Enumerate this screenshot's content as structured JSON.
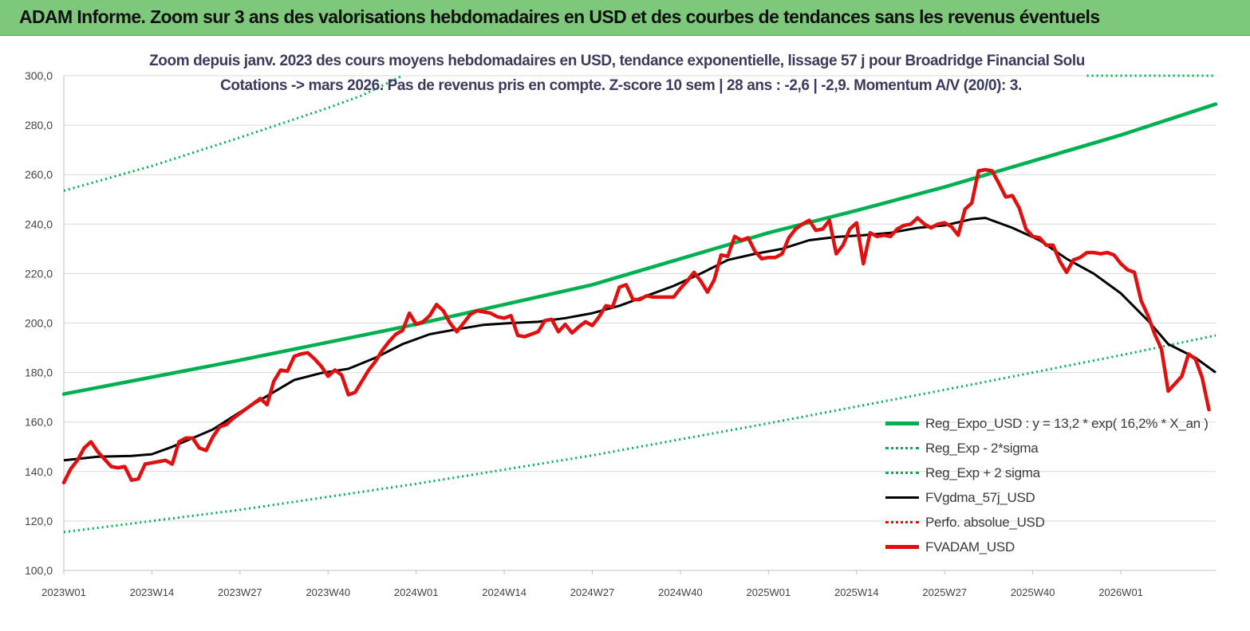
{
  "banner": {
    "title": "ADAM Informe. Zoom sur 3 ans des valorisations hebdomadaires en USD et des courbes de tendances sans les revenus éventuels",
    "color": "#7dc87a"
  },
  "chart_data": {
    "type": "line",
    "title": "Zoom depuis janv. 2023 des cours moyens hebdomadaires en USD, tendance exponentielle, lissage 57 j pour Broadridge Financial Solu",
    "subtitle": "Cotations -> mars 2026. Pas de revenus pris en compte. Z-score 10 sem | 28 ans : -2,6 | -2,9. Momentum A/V (20/0): 3.",
    "xlabel": "",
    "ylabel": "",
    "ylim": [
      100,
      300
    ],
    "y_ticks": [
      "100,0",
      "120,0",
      "140,0",
      "160,0",
      "180,0",
      "200,0",
      "220,0",
      "240,0",
      "260,0",
      "280,0",
      "300,0"
    ],
    "x_tick_labels": [
      "2023W01",
      "2023W14",
      "2023W27",
      "2023W40",
      "2024W01",
      "2024W14",
      "2024W27",
      "2024W40",
      "2025W01",
      "2025W14",
      "2025W27",
      "2025W40",
      "2026W01"
    ],
    "x_tick_index": [
      0,
      13,
      26,
      39,
      52,
      65,
      78,
      91,
      104,
      117,
      130,
      143,
      156
    ],
    "n_weeks": 170,
    "grid": "horizontal",
    "legend_position": "bottom-right",
    "series": [
      {
        "name": "Reg_Expo_USD : y = 13,2 * exp( 16,2% * X_an )",
        "color": "#00b050",
        "style": "solid-thick",
        "points": [
          [
            0,
            171.3
          ],
          [
            26,
            185.0
          ],
          [
            52,
            199.5
          ],
          [
            78,
            215.5
          ],
          [
            104,
            236.5
          ],
          [
            117,
            245.5
          ],
          [
            130,
            255.0
          ],
          [
            156,
            276.0
          ],
          [
            170,
            288.5
          ]
        ]
      },
      {
        "name": "Reg_Exp - 2*sigma",
        "color": "#00b050",
        "style": "dotted",
        "points": [
          [
            0,
            115.5
          ],
          [
            26,
            124.5
          ],
          [
            52,
            135.0
          ],
          [
            78,
            146.5
          ],
          [
            104,
            159.5
          ],
          [
            130,
            173.0
          ],
          [
            156,
            187.0
          ],
          [
            170,
            195.0
          ]
        ]
      },
      {
        "name": "Reg_Exp + 2 sigma",
        "color": "#00b050",
        "style": "dotted",
        "points": [
          [
            0,
            253.5
          ],
          [
            13,
            263.5
          ],
          [
            26,
            275.0
          ],
          [
            39,
            287.0
          ],
          [
            44,
            292.0
          ],
          [
            50,
            300.0
          ]
        ],
        "extra_segment": [
          [
            151,
            300.0
          ],
          [
            170,
            300.0
          ]
        ]
      },
      {
        "name": "FVgdma_57j_USD",
        "color": "#000000",
        "style": "solid",
        "points": [
          [
            0,
            144.5
          ],
          [
            5,
            146.0
          ],
          [
            10,
            146.3
          ],
          [
            13,
            147.0
          ],
          [
            16,
            150.0
          ],
          [
            19,
            153.5
          ],
          [
            22,
            157.0
          ],
          [
            26,
            164.0
          ],
          [
            30,
            170.5
          ],
          [
            34,
            177.0
          ],
          [
            38,
            179.8
          ],
          [
            42,
            181.5
          ],
          [
            46,
            186.0
          ],
          [
            50,
            191.5
          ],
          [
            54,
            195.5
          ],
          [
            58,
            197.5
          ],
          [
            62,
            199.3
          ],
          [
            66,
            200.0
          ],
          [
            70,
            200.5
          ],
          [
            74,
            202.0
          ],
          [
            78,
            204.0
          ],
          [
            82,
            207.0
          ],
          [
            86,
            211.0
          ],
          [
            90,
            215.0
          ],
          [
            94,
            220.0
          ],
          [
            98,
            225.5
          ],
          [
            102,
            228.0
          ],
          [
            106,
            230.0
          ],
          [
            110,
            233.5
          ],
          [
            114,
            234.8
          ],
          [
            118,
            235.5
          ],
          [
            122,
            236.5
          ],
          [
            126,
            238.5
          ],
          [
            130,
            239.5
          ],
          [
            134,
            242.0
          ],
          [
            136,
            242.5
          ],
          [
            140,
            238.5
          ],
          [
            144,
            233.5
          ],
          [
            148,
            226.0
          ],
          [
            152,
            220.0
          ],
          [
            156,
            212.0
          ],
          [
            160,
            201.0
          ],
          [
            163,
            191.5
          ],
          [
            167,
            186.0
          ],
          [
            170,
            180.0
          ]
        ]
      },
      {
        "name": "Perfo. absolue_USD",
        "color": "#ff0000",
        "style": "dotted",
        "points": []
      },
      {
        "name": "FVADAM_USD",
        "color": "#e01010",
        "style": "solid-thick",
        "points": [
          [
            0,
            135.5
          ],
          [
            1,
            141.0
          ],
          [
            2,
            144.5
          ],
          [
            3,
            149.5
          ],
          [
            4,
            152.0
          ],
          [
            5,
            148.0
          ],
          [
            6,
            145.0
          ],
          [
            7,
            142.0
          ],
          [
            8,
            141.5
          ],
          [
            9,
            142.0
          ],
          [
            10,
            136.5
          ],
          [
            11,
            137.0
          ],
          [
            12,
            143.0
          ],
          [
            13,
            143.5
          ],
          [
            14,
            144.0
          ],
          [
            15,
            144.5
          ],
          [
            16,
            143.0
          ],
          [
            17,
            152.0
          ],
          [
            18,
            153.5
          ],
          [
            19,
            153.5
          ],
          [
            20,
            149.5
          ],
          [
            21,
            148.5
          ],
          [
            22,
            154.0
          ],
          [
            23,
            158.0
          ],
          [
            24,
            159.0
          ],
          [
            25,
            161.5
          ],
          [
            26,
            163.5
          ],
          [
            27,
            165.5
          ],
          [
            28,
            167.5
          ],
          [
            29,
            169.5
          ],
          [
            30,
            167.0
          ],
          [
            31,
            176.5
          ],
          [
            32,
            181.0
          ],
          [
            33,
            180.5
          ],
          [
            34,
            186.5
          ],
          [
            35,
            187.5
          ],
          [
            36,
            188.0
          ],
          [
            37,
            185.5
          ],
          [
            38,
            182.5
          ],
          [
            39,
            178.5
          ],
          [
            40,
            181.0
          ],
          [
            41,
            179.0
          ],
          [
            42,
            171.0
          ],
          [
            43,
            172.0
          ],
          [
            44,
            176.5
          ],
          [
            45,
            181.0
          ],
          [
            46,
            184.5
          ],
          [
            47,
            189.0
          ],
          [
            48,
            192.5
          ],
          [
            49,
            195.5
          ],
          [
            50,
            197.0
          ],
          [
            51,
            204.0
          ],
          [
            52,
            199.5
          ],
          [
            53,
            200.5
          ],
          [
            54,
            203.0
          ],
          [
            55,
            207.5
          ],
          [
            56,
            205.0
          ],
          [
            57,
            200.0
          ],
          [
            58,
            196.5
          ],
          [
            59,
            200.0
          ],
          [
            60,
            203.5
          ],
          [
            61,
            205.0
          ],
          [
            62,
            204.5
          ],
          [
            63,
            204.0
          ],
          [
            64,
            202.5
          ],
          [
            65,
            202.0
          ],
          [
            66,
            203.0
          ],
          [
            67,
            195.0
          ],
          [
            68,
            194.5
          ],
          [
            69,
            195.5
          ],
          [
            70,
            196.5
          ],
          [
            71,
            201.0
          ],
          [
            72,
            201.5
          ],
          [
            73,
            196.5
          ],
          [
            74,
            199.5
          ],
          [
            75,
            196.0
          ],
          [
            76,
            198.5
          ],
          [
            77,
            200.5
          ],
          [
            78,
            199.0
          ],
          [
            79,
            202.5
          ],
          [
            80,
            207.0
          ],
          [
            81,
            206.5
          ],
          [
            82,
            214.5
          ],
          [
            83,
            215.5
          ],
          [
            84,
            209.5
          ],
          [
            85,
            209.5
          ],
          [
            86,
            211.0
          ],
          [
            87,
            210.5
          ],
          [
            88,
            210.5
          ],
          [
            89,
            210.5
          ],
          [
            90,
            210.5
          ],
          [
            91,
            214.0
          ],
          [
            92,
            217.0
          ],
          [
            93,
            220.5
          ],
          [
            94,
            217.0
          ],
          [
            95,
            212.5
          ],
          [
            96,
            217.5
          ],
          [
            97,
            227.5
          ],
          [
            98,
            227.0
          ],
          [
            99,
            235.0
          ],
          [
            100,
            233.5
          ],
          [
            101,
            234.5
          ],
          [
            102,
            229.0
          ],
          [
            103,
            226.0
          ],
          [
            104,
            226.5
          ],
          [
            105,
            226.5
          ],
          [
            106,
            228.0
          ],
          [
            107,
            234.5
          ],
          [
            108,
            238.0
          ],
          [
            109,
            240.0
          ],
          [
            110,
            241.5
          ],
          [
            111,
            237.5
          ],
          [
            112,
            238.0
          ],
          [
            113,
            241.5
          ],
          [
            114,
            228.0
          ],
          [
            115,
            231.5
          ],
          [
            116,
            238.0
          ],
          [
            117,
            240.5
          ],
          [
            118,
            224.0
          ],
          [
            119,
            236.5
          ],
          [
            120,
            235.0
          ],
          [
            121,
            235.5
          ],
          [
            122,
            235.0
          ],
          [
            123,
            238.0
          ],
          [
            124,
            239.5
          ],
          [
            125,
            240.0
          ],
          [
            126,
            242.5
          ],
          [
            127,
            240.0
          ],
          [
            128,
            238.5
          ],
          [
            129,
            240.0
          ],
          [
            130,
            240.5
          ],
          [
            131,
            239.0
          ],
          [
            132,
            235.5
          ],
          [
            133,
            246.0
          ],
          [
            134,
            248.5
          ],
          [
            135,
            261.5
          ],
          [
            136,
            262.0
          ],
          [
            137,
            261.5
          ],
          [
            138,
            256.5
          ],
          [
            139,
            251.0
          ],
          [
            140,
            251.5
          ],
          [
            141,
            246.5
          ],
          [
            142,
            238.0
          ],
          [
            143,
            235.0
          ],
          [
            144,
            234.5
          ],
          [
            145,
            231.5
          ],
          [
            146,
            231.5
          ],
          [
            147,
            225.0
          ],
          [
            148,
            220.5
          ],
          [
            149,
            225.5
          ],
          [
            150,
            226.5
          ],
          [
            151,
            228.5
          ],
          [
            152,
            228.5
          ],
          [
            153,
            228.0
          ],
          [
            154,
            228.5
          ],
          [
            155,
            227.5
          ],
          [
            156,
            224.0
          ],
          [
            157,
            221.5
          ],
          [
            158,
            220.5
          ],
          [
            159,
            209.0
          ],
          [
            160,
            203.0
          ],
          [
            161,
            195.5
          ],
          [
            162,
            189.5
          ],
          [
            163,
            172.5
          ],
          [
            164,
            175.5
          ],
          [
            165,
            178.5
          ],
          [
            166,
            187.5
          ],
          [
            167,
            185.5
          ],
          [
            168,
            178.0
          ],
          [
            169,
            165.0
          ]
        ]
      }
    ]
  }
}
